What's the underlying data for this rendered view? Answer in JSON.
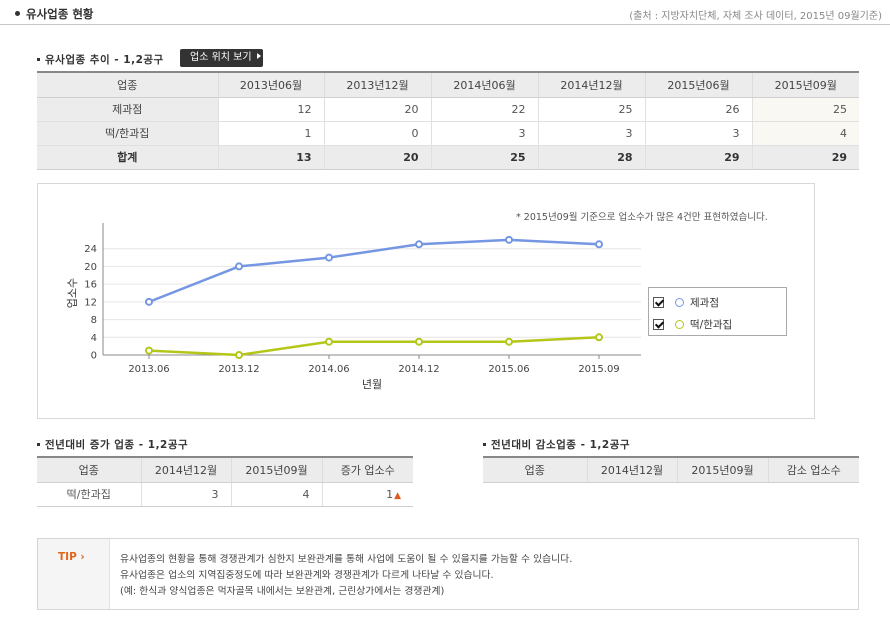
{
  "header": {
    "title": "유사업종 현황",
    "source": "(출처 : 지방자치단체, 자체 조사 데이터, 2015년 09월기준)"
  },
  "trend": {
    "title": "유사업종 추이 - 1,2공구",
    "location_button": "업소 위치 보기",
    "columns": [
      "업종",
      "2013년06월",
      "2013년12월",
      "2014년06월",
      "2014년12월",
      "2015년06월",
      "2015년09월"
    ],
    "rows": [
      {
        "name": "제과점",
        "values": [
          "12",
          "20",
          "22",
          "25",
          "26",
          "25"
        ]
      },
      {
        "name": "떡/한과집",
        "values": [
          "1",
          "0",
          "3",
          "3",
          "3",
          "4"
        ]
      }
    ],
    "total": {
      "name": "합계",
      "values": [
        "13",
        "20",
        "25",
        "28",
        "29",
        "29"
      ]
    }
  },
  "chart_note": "* 2015년09월 기준으로 업소수가 많은 4건만 표현하였습니다.",
  "chart_data": {
    "type": "line",
    "categories": [
      "2013.06",
      "2013.12",
      "2014.06",
      "2014.12",
      "2015.06",
      "2015.09"
    ],
    "series": [
      {
        "name": "제과점",
        "values": [
          12,
          20,
          22,
          25,
          26,
          25
        ],
        "color": "#7596e2"
      },
      {
        "name": "떡/한과집",
        "values": [
          1,
          0,
          3,
          3,
          3,
          4
        ],
        "color": "#b4c618"
      }
    ],
    "xlabel": "년월",
    "ylabel": "업소수",
    "ylim": [
      0,
      28
    ],
    "yticks": [
      0,
      4,
      8,
      12,
      16,
      20,
      24
    ],
    "grid": true,
    "legend": "right"
  },
  "increase": {
    "title": "전년대비 증가 업종 - 1,2공구",
    "columns": [
      "업종",
      "2014년12월",
      "2015년09월",
      "증가 업소수"
    ],
    "rows": [
      {
        "name": "떡/한과집",
        "values": [
          "3",
          "4",
          "1"
        ]
      }
    ],
    "arrow": "▲",
    "arrow_color": "#e05a1c"
  },
  "decrease": {
    "title": "전년대비 감소업종 - 1,2공구",
    "columns": [
      "업종",
      "2014년12월",
      "2015년09월",
      "감소 업소수"
    ]
  },
  "tip": {
    "label": "TIP ›",
    "lines": [
      "유사업종의 현황을 통해 경쟁관계가 심한지 보완관계를 통해 사업에 도움이 될 수 있을지를 가늠할 수 있습니다.",
      "유사업종은 업소의 지역집중정도에 따라 보완관계와 경쟁관계가 다르게 나타날 수 있습니다.",
      "(예: 한식과 양식업종은 먹자골목 내에서는 보완관계, 근린상가에서는 경쟁관계)"
    ]
  }
}
